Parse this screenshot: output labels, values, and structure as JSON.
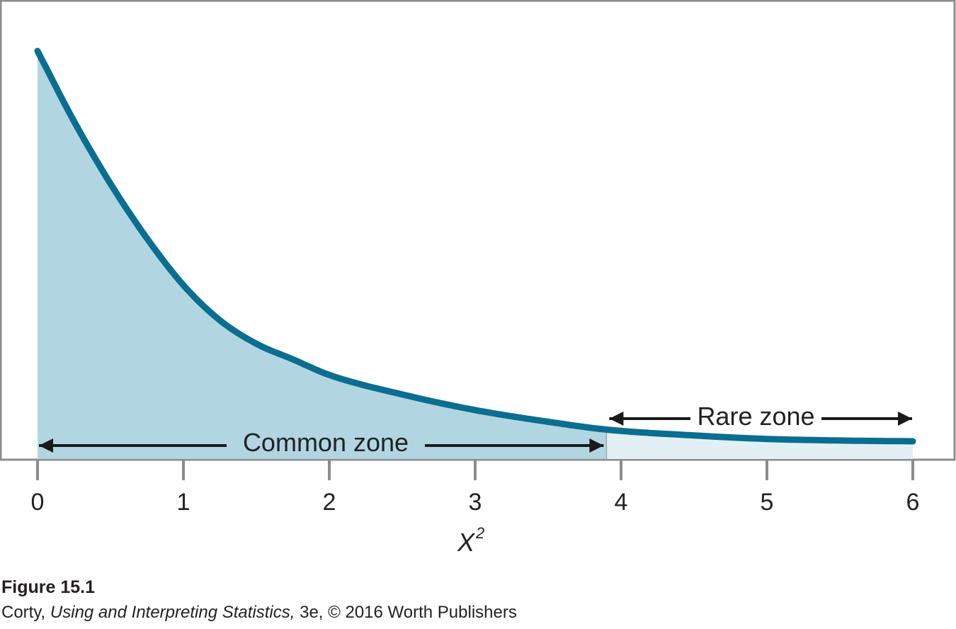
{
  "chart_data": {
    "type": "area",
    "xlabel": "X",
    "xlabel_superscript": "2",
    "ylabel": "",
    "xlim": [
      0,
      6
    ],
    "x_ticks": [
      "0",
      "1",
      "2",
      "3",
      "4",
      "5",
      "6"
    ],
    "grid": false,
    "critical_value": 3.9,
    "curve": {
      "x": [
        0,
        0.25,
        0.5,
        0.75,
        1,
        1.25,
        1.5,
        1.75,
        2,
        2.5,
        3,
        3.5,
        3.9,
        4.5,
        5,
        5.5,
        6
      ],
      "y": [
        1.0,
        0.82,
        0.66,
        0.52,
        0.4,
        0.31,
        0.25,
        0.21,
        0.17,
        0.12,
        0.08,
        0.05,
        0.03,
        0.015,
        0.006,
        0.002,
        0.0
      ]
    },
    "annotations": {
      "common_zone": "Common zone",
      "rare_zone": "Rare zone"
    },
    "colors": {
      "curve": "#0a6e91",
      "common_fill": "#b1d6e2",
      "rare_fill": "#e2f0f6",
      "frame": "#8c8c8c"
    }
  },
  "caption": {
    "title": "Figure 15.1",
    "author": "Corty,",
    "book": "Using and Interpreting Statistics,",
    "rest": "3e, © 2016 Worth Publishers"
  }
}
